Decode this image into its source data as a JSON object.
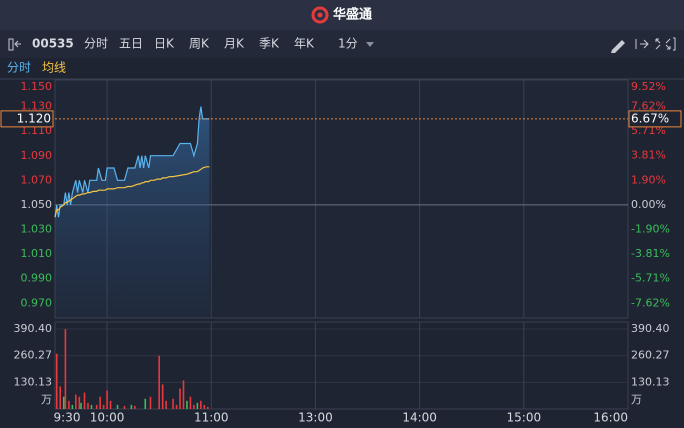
{
  "header": {
    "brand": "华盛通"
  },
  "toolbar": {
    "symbol": "00535",
    "tabs": [
      "分时",
      "五日",
      "日K",
      "周K",
      "月K",
      "季K",
      "年K"
    ],
    "active_tab": 0,
    "interval": "1分"
  },
  "chart_data": [
    {
      "type": "line",
      "x": [
        0,
        1,
        2,
        3,
        5,
        6,
        7,
        8,
        9,
        10,
        12,
        13,
        14,
        16,
        17,
        19,
        20,
        22,
        24,
        25,
        27,
        29,
        30,
        32,
        34,
        36,
        38,
        40,
        42,
        44,
        46,
        48,
        49,
        50,
        51,
        52,
        54,
        55,
        57,
        59,
        61,
        62,
        64,
        66,
        68,
        72,
        76,
        78,
        80,
        82,
        83,
        84,
        85,
        87,
        89
      ],
      "series": [
        {
          "name": "分时",
          "color": "#5ab4f0",
          "values": [
            1.04,
            1.05,
            1.04,
            1.05,
            1.05,
            1.06,
            1.05,
            1.06,
            1.05,
            1.06,
            1.07,
            1.06,
            1.07,
            1.06,
            1.07,
            1.06,
            1.07,
            1.07,
            1.07,
            1.08,
            1.07,
            1.07,
            1.08,
            1.08,
            1.08,
            1.07,
            1.07,
            1.07,
            1.08,
            1.08,
            1.08,
            1.09,
            1.08,
            1.09,
            1.08,
            1.09,
            1.08,
            1.09,
            1.09,
            1.09,
            1.09,
            1.09,
            1.09,
            1.09,
            1.09,
            1.1,
            1.1,
            1.1,
            1.09,
            1.1,
            1.12,
            1.13,
            1.12,
            1.12,
            1.12
          ]
        },
        {
          "name": "均线",
          "color": "#f5c342",
          "values": [
            1.04,
            1.046,
            1.046,
            1.048,
            1.05,
            1.052,
            1.052,
            1.053,
            1.054,
            1.055,
            1.057,
            1.058,
            1.058,
            1.059,
            1.059,
            1.06,
            1.06,
            1.061,
            1.061,
            1.062,
            1.062,
            1.062,
            1.063,
            1.063,
            1.063,
            1.064,
            1.064,
            1.064,
            1.065,
            1.065,
            1.066,
            1.067,
            1.067,
            1.068,
            1.068,
            1.069,
            1.069,
            1.07,
            1.07,
            1.071,
            1.071,
            1.072,
            1.072,
            1.073,
            1.073,
            1.074,
            1.075,
            1.076,
            1.077,
            1.077,
            1.078,
            1.079,
            1.08,
            1.081,
            1.081
          ]
        }
      ],
      "xlim": [
        0,
        330
      ],
      "xticks": [
        {
          "value": 0,
          "label": "9:30"
        },
        {
          "value": 30,
          "label": "10:00"
        },
        {
          "value": 90,
          "label": "11:00"
        },
        {
          "value": 150,
          "label": "13:00"
        },
        {
          "value": 210,
          "label": "14:00"
        },
        {
          "value": 270,
          "label": "15:00"
        },
        {
          "value": 330,
          "label": "16:00"
        }
      ],
      "ylim": [
        0.958,
        1.15
      ],
      "yticks": [
        {
          "value": 1.15,
          "label": "1.150"
        },
        {
          "value": 1.13,
          "label": "1.130"
        },
        {
          "value": 1.11,
          "label": "1.110"
        },
        {
          "value": 1.09,
          "label": "1.090"
        },
        {
          "value": 1.07,
          "label": "1.070"
        },
        {
          "value": 1.05,
          "label": "1.050"
        },
        {
          "value": 1.03,
          "label": "1.030"
        },
        {
          "value": 1.01,
          "label": "1.010"
        },
        {
          "value": 0.99,
          "label": "0.990"
        },
        {
          "value": 0.97,
          "label": "0.970"
        }
      ],
      "y2lim": [
        -8.76,
        9.52
      ],
      "y2ticks": [
        {
          "value": 9.52,
          "label": "9.52%"
        },
        {
          "value": 7.62,
          "label": "7.62%"
        },
        {
          "value": 5.71,
          "label": "5.71%"
        },
        {
          "value": 3.81,
          "label": "3.81%"
        },
        {
          "value": 1.9,
          "label": "1.90%"
        },
        {
          "value": 0,
          "label": "0.00%"
        },
        {
          "value": -1.9,
          "label": "-1.90%"
        },
        {
          "value": -3.81,
          "label": "-3.81%"
        },
        {
          "value": -5.71,
          "label": "-5.71%"
        },
        {
          "value": -7.62,
          "label": "-7.62%"
        }
      ],
      "prev_close": 1.05,
      "current_price": {
        "value": 1.12,
        "label": "1.120"
      },
      "current_change": {
        "value": 6.67,
        "label": "6.67%"
      }
    },
    {
      "type": "bar",
      "x": [
        1,
        3,
        5,
        6,
        8,
        10,
        12,
        14,
        15,
        17,
        19,
        21,
        24,
        26,
        28,
        30,
        32,
        36,
        40,
        44,
        46,
        52,
        55,
        60,
        62,
        64,
        68,
        70,
        72,
        74,
        76,
        78,
        80,
        82,
        84,
        86,
        88
      ],
      "values": [
        270,
        110,
        60,
        390,
        40,
        20,
        70,
        60,
        30,
        80,
        30,
        20,
        20,
        60,
        20,
        90,
        40,
        20,
        15,
        20,
        15,
        50,
        60,
        260,
        120,
        40,
        50,
        20,
        100,
        140,
        40,
        60,
        20,
        30,
        40,
        20,
        10
      ],
      "colors": [
        "#e8393c",
        "#e8393c",
        "#3cbc5c",
        "#e8393c",
        "#e8393c",
        "#3cbc5c",
        "#e8393c",
        "#e8393c",
        "#3cbc5c",
        "#e8393c",
        "#e8393c",
        "#3cbc5c",
        "#e8393c",
        "#e8393c",
        "#e8393c",
        "#e8393c",
        "#e8393c",
        "#3cbc5c",
        "#e8393c",
        "#3cbc5c",
        "#e8393c",
        "#3cbc5c",
        "#e8393c",
        "#e8393c",
        "#e8393c",
        "#e8393c",
        "#e8393c",
        "#e8393c",
        "#e8393c",
        "#e8393c",
        "#3cbc5c",
        "#e8393c",
        "#e8393c",
        "#3cbc5c",
        "#e8393c",
        "#e8393c",
        "#e8393c"
      ],
      "xlim": [
        0,
        330
      ],
      "xticks": [
        {
          "value": 0,
          "label": "9:30"
        },
        {
          "value": 30,
          "label": "10:00"
        },
        {
          "value": 90,
          "label": "11:00"
        },
        {
          "value": 150,
          "label": "13:00"
        },
        {
          "value": 210,
          "label": "14:00"
        },
        {
          "value": 270,
          "label": "15:00"
        },
        {
          "value": 330,
          "label": "16:00"
        }
      ],
      "ylim": [
        0,
        390.4
      ],
      "yticks": [
        {
          "value": 390.4,
          "label": "390.40"
        },
        260.27,
        130.13
      ],
      "unit": "万"
    }
  ]
}
